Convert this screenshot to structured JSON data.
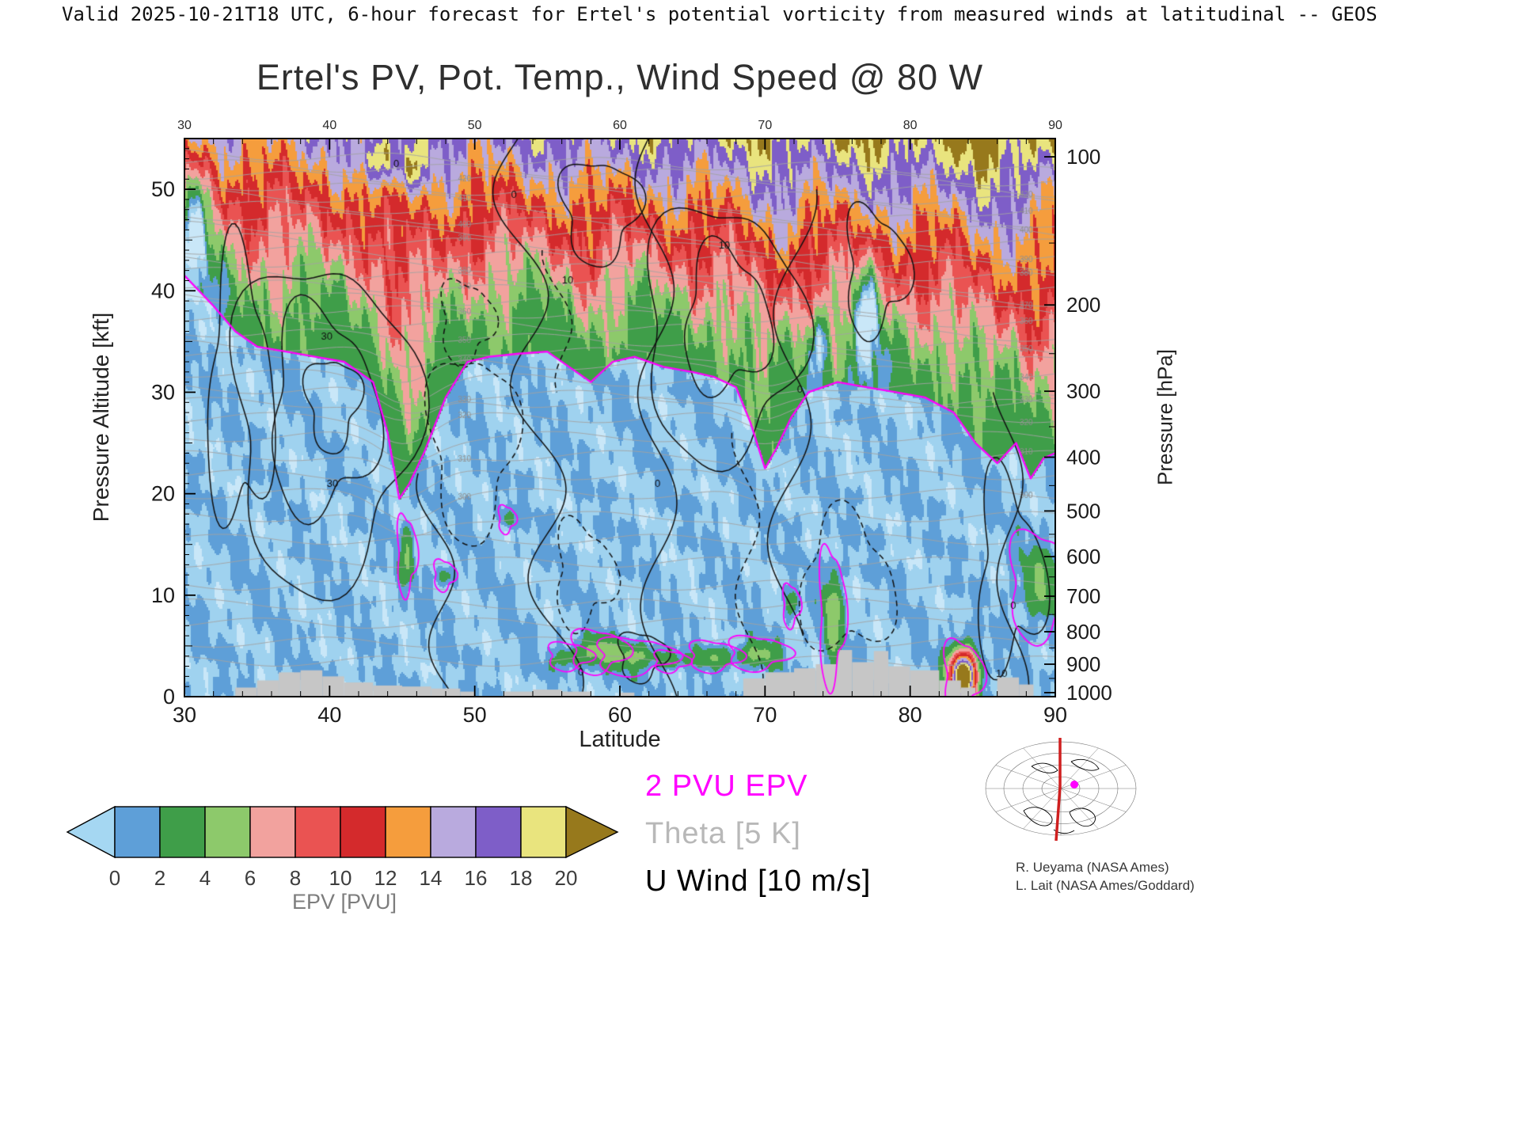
{
  "header": {
    "valid_line": "Valid 2025-10-21T18 UTC, 6-hour forecast for Ertel's potential vorticity from measured winds at latitudinal -- GEOS"
  },
  "title": "Ertel's PV, Pot. Temp., Wind Speed @ 80 W",
  "axes": {
    "x": {
      "label": "Latitude",
      "range": [
        30,
        90
      ],
      "major_ticks": [
        30,
        40,
        50,
        60,
        70,
        80,
        90
      ],
      "minor_step": 2
    },
    "y_left": {
      "label": "Pressure Altitude [kft]",
      "range": [
        0,
        55
      ],
      "major_ticks": [
        0,
        10,
        20,
        30,
        40,
        50
      ]
    },
    "y_right": {
      "label": "Pressure [hPa]",
      "major_ticks": [
        100,
        200,
        300,
        400,
        500,
        600,
        700,
        800,
        900,
        1000
      ]
    }
  },
  "colorbar": {
    "label": "EPV [PVU]",
    "ticks": [
      0,
      2,
      4,
      6,
      8,
      10,
      12,
      14,
      16,
      18,
      20
    ],
    "segment_colors": [
      "#5e9fd8",
      "#3f9e49",
      "#8dc96b",
      "#f2a29e",
      "#ea5352",
      "#d42a2c",
      "#f59d3d",
      "#b9aade",
      "#7e5ec8",
      "#e9e47e"
    ],
    "under_arrow_color": "#a5d7f2",
    "over_arrow_color": "#97791c"
  },
  "legend": [
    {
      "text": "2 PVU EPV",
      "color": "#ff00ff"
    },
    {
      "text": "Theta [5 K]",
      "color": "#b8b8b8"
    },
    {
      "text": "U Wind [10 m/s]",
      "color": "#000000"
    }
  ],
  "credits": [
    "R. Ueyama (NASA Ames)",
    "L. Lait (NASA Ames/Goddard)"
  ],
  "chart_data": {
    "type": "heatmap",
    "title": "Ertel's PV, Pot. Temp., Wind Speed @ 80 W",
    "xlabel": "Latitude",
    "x_range": [
      30,
      90
    ],
    "ylabel": "Pressure Altitude [kft]",
    "y_range": [
      0,
      55
    ],
    "y2label": "Pressure [hPa]",
    "fill_field": "Ertel's potential vorticity [PVU]",
    "fill_levels": [
      0,
      2,
      4,
      6,
      8,
      10,
      12,
      14,
      16,
      18,
      20
    ],
    "fill_colors": [
      "#5e9fd8",
      "#3f9e49",
      "#8dc96b",
      "#f2a29e",
      "#ea5352",
      "#d42a2c",
      "#f59d3d",
      "#b9aade",
      "#7e5ec8",
      "#e9e47e"
    ],
    "under_color_light": "#9fd2ef",
    "under_color_faint": "#c9e7f8",
    "over_color": "#97791c",
    "terrain_color": "#c6c6c6",
    "tropopause_2pvu": {
      "color": "#ff00ff",
      "lat": [
        30,
        32,
        33.5,
        35,
        37,
        39,
        41,
        43,
        44,
        44.8,
        45.5,
        46.5,
        48,
        49.5,
        51,
        53,
        55,
        56.5,
        58,
        59.5,
        61,
        63,
        65,
        66.5,
        68,
        69,
        70,
        70.8,
        71.8,
        73,
        75,
        77,
        79,
        81,
        83,
        84.5,
        86,
        87.3,
        88.3,
        89.2,
        90
      ],
      "alt_kft": [
        41.5,
        38.5,
        36,
        34.5,
        34,
        33.5,
        33,
        31,
        26,
        19.5,
        21,
        24,
        29.5,
        33,
        33.5,
        33.8,
        34,
        32.5,
        31,
        33,
        33.5,
        32.5,
        32,
        31.5,
        30.5,
        27,
        22.5,
        24.5,
        27.5,
        30,
        31,
        30.5,
        30,
        29.5,
        28,
        25,
        23,
        25,
        21.5,
        23.5,
        24
      ]
    },
    "pressure_altitude_kft": {
      "100": 53.2,
      "150": 44.7,
      "200": 38.6,
      "250": 33.8,
      "300": 30.1,
      "350": 26.6,
      "400": 23.6,
      "450": 20.8,
      "500": 18.3,
      "550": 16.0,
      "600": 13.8,
      "650": 11.8,
      "700": 9.9,
      "750": 8.1,
      "800": 6.4,
      "850": 4.8,
      "900": 3.2,
      "950": 1.8,
      "1000": 0.4
    },
    "terrain_blocks": [
      [
        33.5,
        35,
        0.9
      ],
      [
        35,
        36.5,
        1.6
      ],
      [
        36.5,
        38,
        2.4
      ],
      [
        38,
        39.5,
        2.6
      ],
      [
        39.5,
        41,
        2.0
      ],
      [
        41,
        43,
        1.4
      ],
      [
        43,
        45,
        1.1
      ],
      [
        45,
        47,
        1.0
      ],
      [
        47,
        49,
        0.8
      ],
      [
        49,
        50,
        0.5
      ],
      [
        52,
        54,
        0.5
      ],
      [
        54,
        56,
        0.7
      ],
      [
        56,
        58,
        0.5
      ],
      [
        60,
        61,
        0.4
      ],
      [
        68.5,
        70,
        1.8
      ],
      [
        70,
        72,
        2.4
      ],
      [
        72,
        73.5,
        2.8
      ],
      [
        73.5,
        75,
        3.2
      ],
      [
        75,
        76,
        4.6
      ],
      [
        76,
        77.5,
        3.4
      ],
      [
        77.5,
        78.5,
        4.5
      ],
      [
        78.5,
        80,
        3.0
      ],
      [
        80,
        82,
        2.6
      ],
      [
        82,
        83.5,
        1.6
      ],
      [
        83.5,
        84.5,
        0.9
      ],
      [
        86,
        87.5,
        1.9
      ],
      [
        87.5,
        88.5,
        1.2
      ]
    ],
    "surface_pv_features": [
      {
        "c": [
          56.5,
          4.0
        ],
        "r": [
          1.0,
          0.9
        ],
        "amp": 3.0
      },
      {
        "c": [
          58.5,
          4.5
        ],
        "r": [
          1.3,
          1.4
        ],
        "amp": 4.0
      },
      {
        "c": [
          61.0,
          4.0
        ],
        "r": [
          1.8,
          1.2
        ],
        "amp": 3.5
      },
      {
        "c": [
          63.5,
          3.5
        ],
        "r": [
          0.8,
          0.7
        ],
        "amp": 2.6
      },
      {
        "c": [
          66.5,
          4.0
        ],
        "r": [
          1.2,
          1.0
        ],
        "amp": 3.0
      },
      {
        "c": [
          69.5,
          4.3
        ],
        "r": [
          1.4,
          1.1
        ],
        "amp": 4.0
      },
      {
        "c": [
          71.8,
          9.0
        ],
        "r": [
          0.4,
          1.4
        ],
        "amp": 3.0
      },
      {
        "c": [
          74.6,
          8.0
        ],
        "r": [
          0.6,
          4.5
        ],
        "amp": 4.5
      },
      {
        "c": [
          45.3,
          14.0
        ],
        "r": [
          0.45,
          2.6
        ],
        "amp": 3.0
      },
      {
        "c": [
          47.9,
          12.0
        ],
        "r": [
          0.5,
          1.0
        ],
        "amp": 2.6
      },
      {
        "c": [
          52.2,
          17.5
        ],
        "r": [
          0.4,
          0.9
        ],
        "amp": 2.6
      },
      {
        "c": [
          83.6,
          2.0
        ],
        "r": [
          0.9,
          2.4
        ],
        "amp": 25.0
      },
      {
        "c": [
          89.0,
          11.0
        ],
        "r": [
          1.5,
          3.5
        ],
        "amp": 3.2
      }
    ],
    "epv_anomalies": [
      {
        "c": [
          77.0,
          38.0
        ],
        "r": [
          0.8,
          5.0
        ],
        "amp": -6.0
      },
      {
        "c": [
          73.6,
          35.0
        ],
        "r": [
          0.6,
          3.0
        ],
        "amp": -5.0
      },
      {
        "c": [
          30.6,
          48.0
        ],
        "r": [
          1.3,
          6.0
        ],
        "amp": -5.0
      },
      {
        "c": [
          90.0,
          50.0
        ],
        "r": [
          1.0,
          4.0
        ],
        "amp": -3.0
      },
      {
        "c": [
          43.4,
          53.0
        ],
        "r": [
          1.4,
          2.4
        ],
        "amp": 6.0
      },
      {
        "c": [
          45.6,
          52.0
        ],
        "r": [
          0.9,
          2.0
        ],
        "amp": 5.0
      }
    ],
    "theta": {
      "min": 260,
      "max": 430,
      "step": 5,
      "color": "#a3a3a3",
      "label_levels": [
        300,
        310,
        320,
        330,
        340,
        350,
        360,
        370,
        380,
        390,
        400,
        410,
        420
      ],
      "height_map": {
        "260": 3.5,
        "280": 11,
        "300": 20,
        "320": 27.5,
        "340": 33.5,
        "360": 38.5,
        "380": 43,
        "400": 47.5,
        "420": 51.5,
        "440": 55.5
      }
    },
    "wind_contours": {
      "interval_label": "10 m/s",
      "solid_closed": [
        {
          "c": [
            39.5,
            27
          ],
          "r": [
            6.2,
            16
          ],
          "w": 0.14,
          "p": 0.7
        },
        {
          "c": [
            39.5,
            28
          ],
          "r": [
            3.6,
            10
          ],
          "w": 0.18,
          "p": 1.9
        },
        {
          "c": [
            40.2,
            29
          ],
          "r": [
            1.8,
            4.5
          ],
          "w": 0.2,
          "p": 0.3
        },
        {
          "c": [
            33.8,
            30
          ],
          "r": [
            2.2,
            13
          ],
          "w": 0.22,
          "p": 2.6
        },
        {
          "c": [
            67.0,
            36
          ],
          "r": [
            5.4,
            12.5
          ],
          "w": 0.13,
          "p": 1.1
        },
        {
          "c": [
            67.3,
            37
          ],
          "r": [
            2.9,
            7
          ],
          "w": 0.18,
          "p": 2.2
        },
        {
          "c": [
            58.6,
            48
          ],
          "r": [
            2.6,
            5
          ],
          "w": 0.2,
          "p": 0.5
        },
        {
          "c": [
            77.6,
            42
          ],
          "r": [
            2.1,
            6
          ],
          "w": 0.25,
          "p": 1.4
        },
        {
          "c": [
            61.5,
            4
          ],
          "r": [
            1.6,
            2.4
          ],
          "w": 0.2,
          "p": 0.9
        },
        {
          "c": [
            86.8,
            12
          ],
          "r": [
            2.2,
            9
          ],
          "w": 0.3,
          "p": 2.0
        }
      ],
      "dashed_closed": [
        {
          "c": [
            49.8,
            25
          ],
          "r": [
            2.9,
            9
          ],
          "w": 0.2,
          "p": 0.4
        },
        {
          "c": [
            49.4,
            37
          ],
          "r": [
            1.8,
            4
          ],
          "w": 0.2,
          "p": 1.2
        },
        {
          "c": [
            75.6,
            11
          ],
          "r": [
            3.2,
            6.5
          ],
          "w": 0.22,
          "p": 2.8
        },
        {
          "c": [
            57.5,
            12
          ],
          "r": [
            2.0,
            5
          ],
          "w": 0.25,
          "p": 1.6
        }
      ],
      "meanders": [
        {
          "base": 52.5,
          "drift": 3.5,
          "amp": 1.6,
          "freq": 0.33,
          "ph": 1.0,
          "z0": 55,
          "z1": 0
        },
        {
          "base": 62.3,
          "drift": 0.5,
          "amp": 1.3,
          "freq": 0.3,
          "ph": 2.1,
          "z0": 55,
          "z1": 0
        },
        {
          "base": 72.2,
          "drift": -0.8,
          "amp": 1.4,
          "freq": 0.28,
          "ph": 0.4,
          "z0": 50,
          "z1": 6
        },
        {
          "base": 47.0,
          "drift": 1.2,
          "amp": 1.1,
          "freq": 0.4,
          "ph": 2.8,
          "z0": 22,
          "z1": 0
        },
        {
          "base": 86.6,
          "drift": 0.6,
          "amp": 1.0,
          "freq": 0.31,
          "ph": 1.2,
          "z0": 30,
          "z1": 0
        }
      ],
      "dashed_meanders": [
        {
          "base": 68.6,
          "drift": 0.4,
          "amp": 0.9,
          "freq": 0.4,
          "ph": 0.8,
          "z0": 26,
          "z1": 0
        },
        {
          "base": 55.4,
          "drift": 1.0,
          "amp": 0.8,
          "freq": 0.5,
          "ph": 1.9,
          "z0": 44,
          "z1": 30
        }
      ],
      "labels": [
        [
          "30",
          40.2,
          21
        ],
        [
          "30",
          39.8,
          35.5
        ],
        [
          "10",
          56.4,
          41
        ],
        [
          "0",
          52.7,
          49.5
        ],
        [
          "0",
          57.3,
          2.4
        ],
        [
          "0",
          62.6,
          21
        ],
        [
          "10",
          67.2,
          44.5
        ],
        [
          "0",
          72.4,
          30.3
        ],
        [
          "0",
          87.1,
          9
        ],
        [
          "10",
          86.3,
          2.3
        ],
        [
          "0",
          44.6,
          52.5
        ]
      ]
    }
  }
}
